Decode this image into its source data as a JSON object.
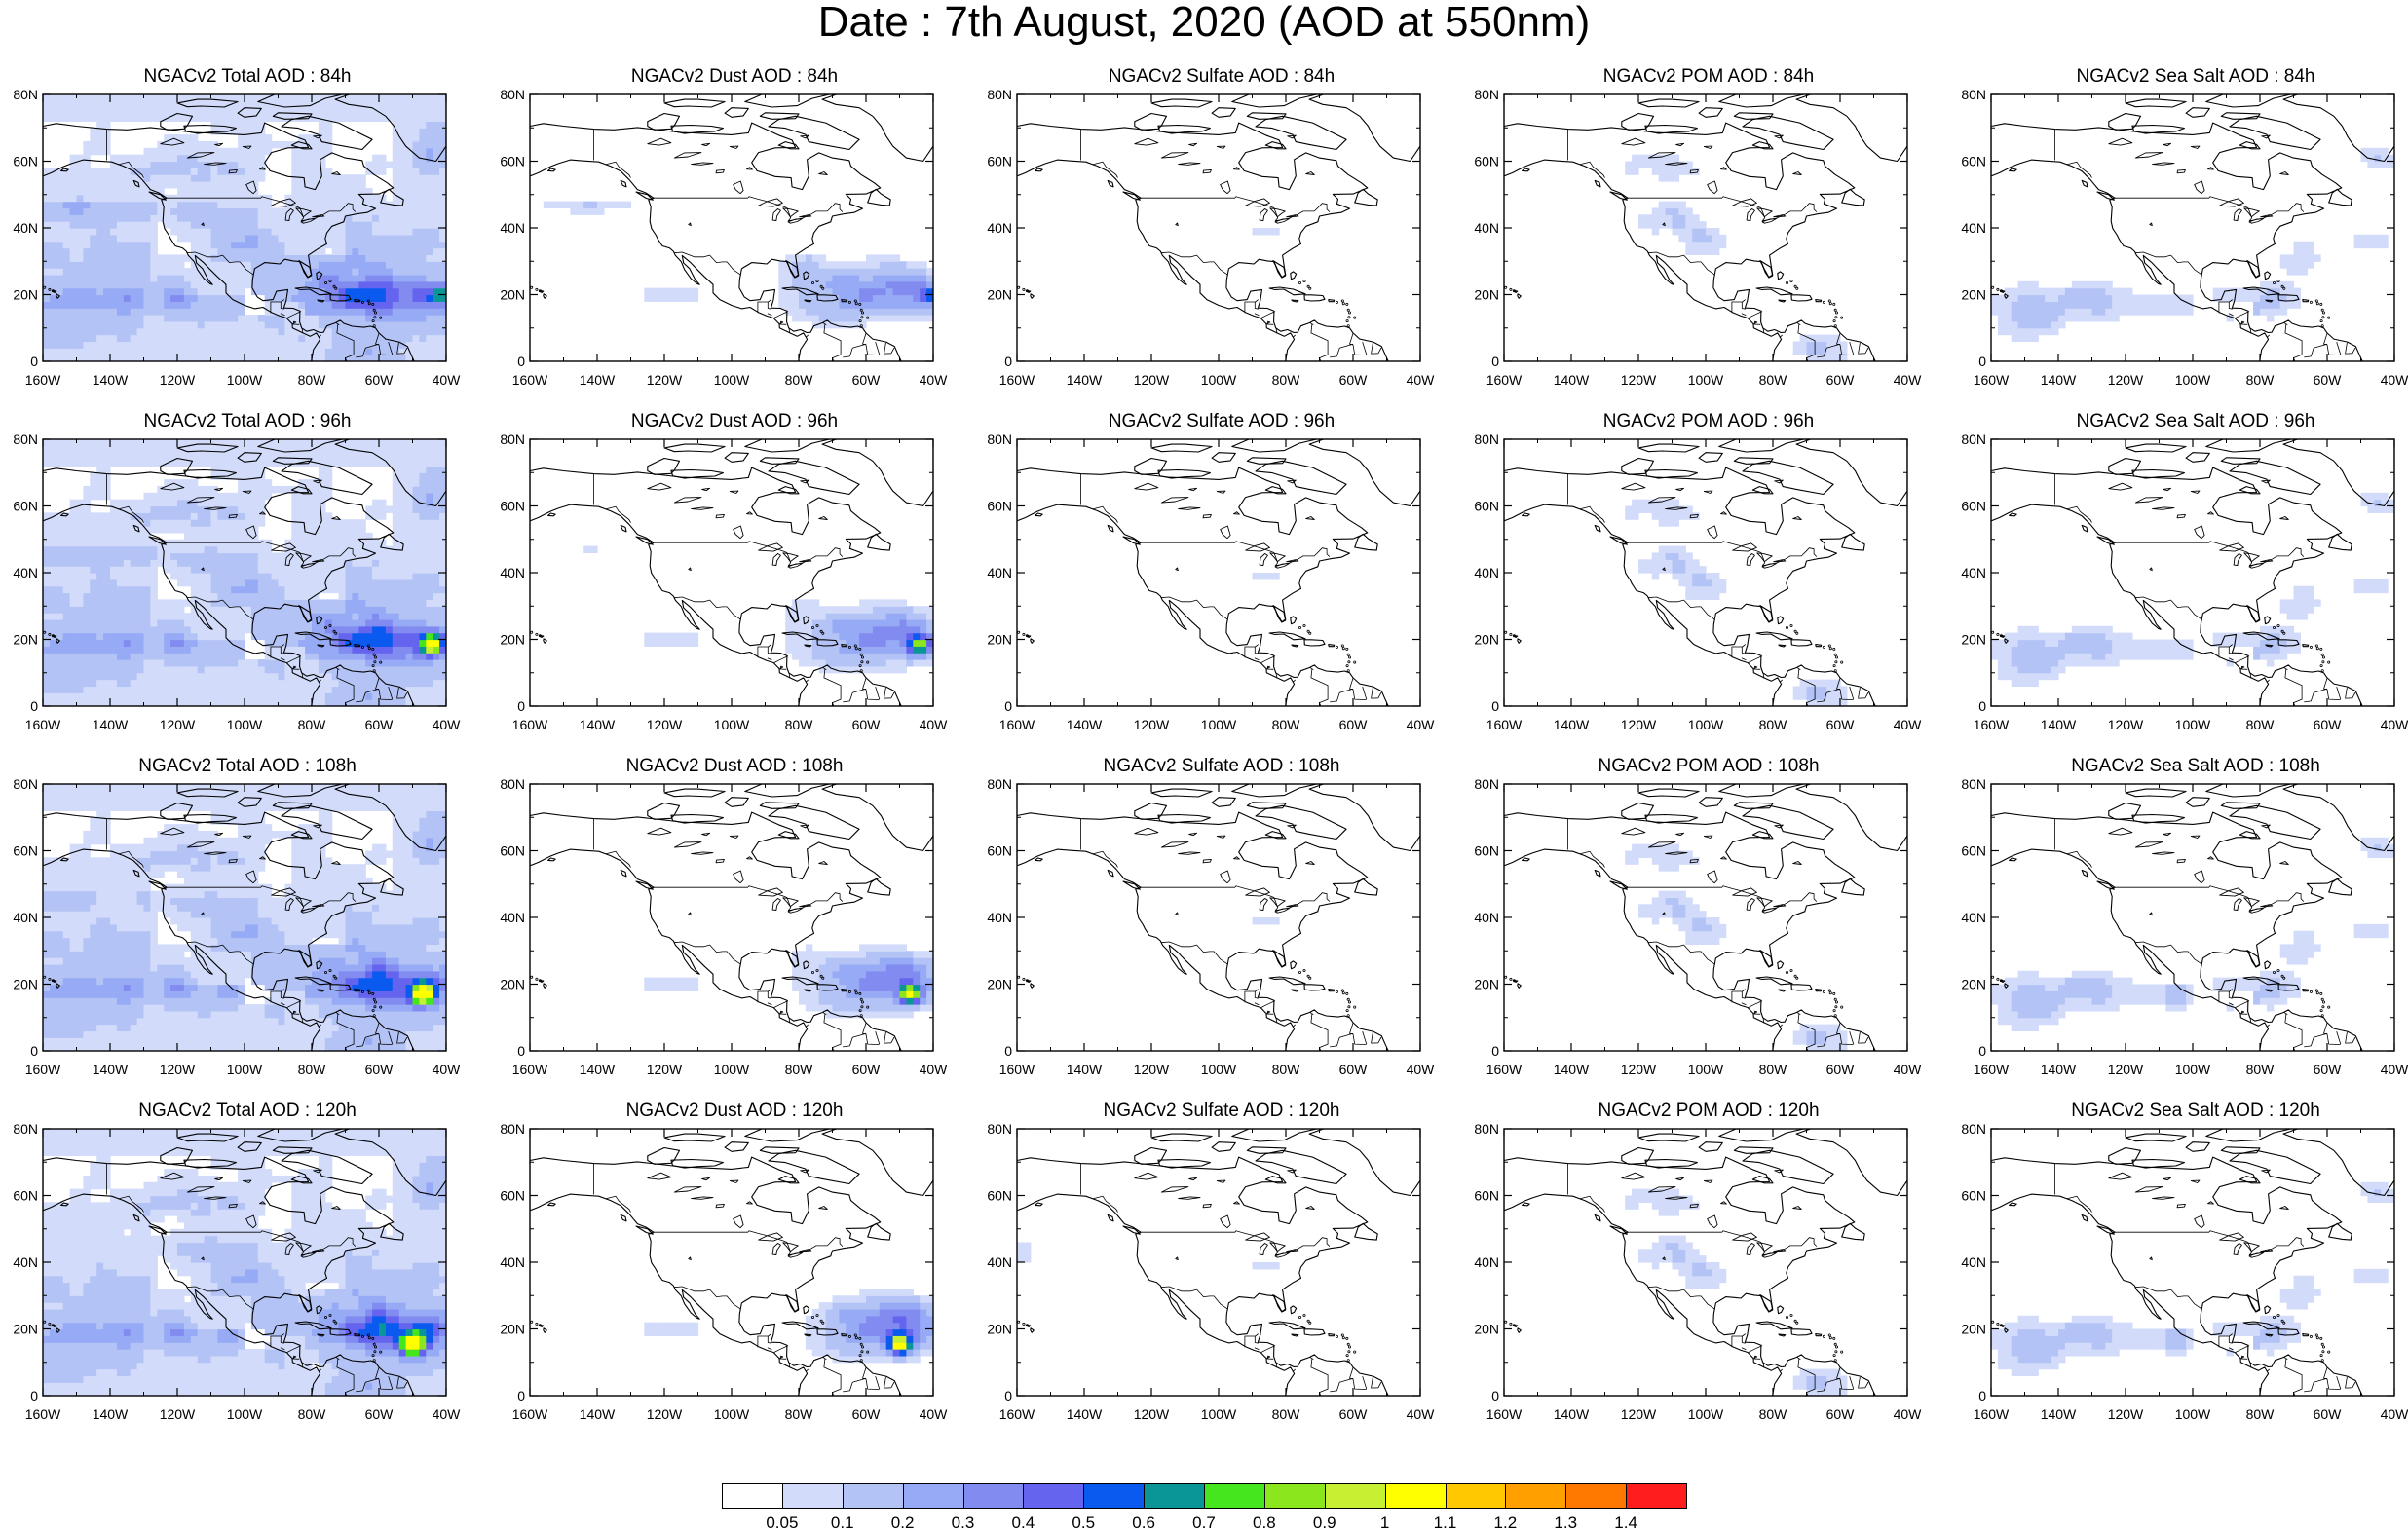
{
  "title": "Date : 7th August, 2020 (AOD at 550nm)",
  "x_ticks": [
    "160W",
    "140W",
    "120W",
    "100W",
    "80W",
    "60W",
    "40W"
  ],
  "y_ticks": [
    "0",
    "20N",
    "40N",
    "60N",
    "80N"
  ],
  "map_extent": {
    "lon": [
      -160,
      -40
    ],
    "lat": [
      0,
      80
    ]
  },
  "species": [
    {
      "id": "total",
      "titles": [
        "NGACv2 Total AOD : 84h",
        "NGACv2 Total AOD : 96h",
        "NGACv2 Total AOD : 108h",
        "NGACv2 Total AOD : 120h"
      ]
    },
    {
      "id": "dust",
      "titles": [
        "NGACv2 Dust AOD : 84h",
        "NGACv2 Dust AOD : 96h",
        "NGACv2 Dust AOD : 108h",
        "NGACv2 Dust AOD : 120h"
      ]
    },
    {
      "id": "sulfate",
      "titles": [
        "NGACv2 Sulfate AOD : 84h",
        "NGACv2 Sulfate AOD : 96h",
        "NGACv2 Sulfate AOD : 108h",
        "NGACv2 Sulfate AOD : 120h"
      ]
    },
    {
      "id": "pom",
      "titles": [
        "NGACv2 POM AOD : 84h",
        "NGACv2 POM AOD : 96h",
        "NGACv2 POM AOD : 108h",
        "NGACv2 POM AOD : 120h"
      ]
    },
    {
      "id": "seasalt",
      "titles": [
        "NGACv2 Sea Salt AOD : 84h",
        "NGACv2 Sea Salt AOD : 96h",
        "NGACv2 Sea Salt AOD : 108h",
        "NGACv2 Sea Salt  AOD : 120h"
      ]
    }
  ],
  "forecast_hours": [
    "84h",
    "96h",
    "108h",
    "120h"
  ],
  "colorbar": {
    "labels": [
      "0.05",
      "0.1",
      "0.2",
      "0.3",
      "0.4",
      "0.5",
      "0.6",
      "0.7",
      "0.8",
      "0.9",
      "1",
      "1.1",
      "1.2",
      "1.3",
      "1.4"
    ],
    "colors": [
      "#ffffff",
      "#d2dcfa",
      "#b4c3f5",
      "#96aaf5",
      "#828cf0",
      "#6464ee",
      "#0a5af0",
      "#0a9696",
      "#46e61e",
      "#8ce61e",
      "#c8f032",
      "#ffff00",
      "#ffc800",
      "#ffa000",
      "#ff7800",
      "#ff1e1e"
    ]
  },
  "coastline_color": "#000000"
}
